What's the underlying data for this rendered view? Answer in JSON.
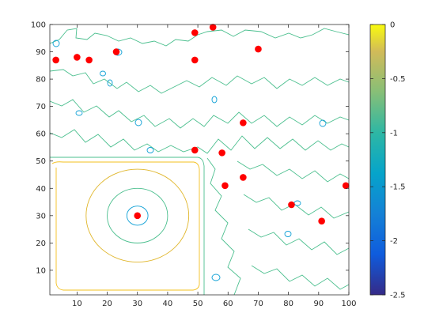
{
  "chart_data": {
    "type": "contour",
    "xlim": [
      1,
      100
    ],
    "ylim": [
      1,
      100
    ],
    "xticks": [
      10,
      20,
      30,
      40,
      50,
      60,
      70,
      80,
      90,
      100
    ],
    "yticks": [
      10,
      20,
      30,
      40,
      50,
      60,
      70,
      80,
      90,
      100
    ],
    "grid": false,
    "colorbar": {
      "location": "right",
      "colormap": "parula",
      "limits": [
        -2.5,
        0
      ],
      "ticks": [
        0,
        -0.5,
        -1,
        -1.5,
        -2,
        -2.5
      ],
      "tick_labels": [
        "0",
        "-0.5",
        "-1",
        "-1.5",
        "-2",
        "-2.5"
      ]
    },
    "contour_levels": [
      {
        "level": -0.2,
        "color": "#f3c01e"
      },
      {
        "level": -0.8,
        "color": "#e0b62b"
      },
      {
        "level": -1.2,
        "color": "#4bbf8e"
      },
      {
        "level": -1.6,
        "color": "#11a1d6"
      }
    ],
    "central_well": {
      "x": 30,
      "y": 30,
      "radii": [
        3.5,
        10,
        17
      ]
    },
    "points": {
      "color": "#ff0000",
      "marker": "filled-circle",
      "x": [
        3,
        10,
        14,
        23,
        49,
        49,
        55,
        70,
        65,
        58,
        49,
        65,
        59,
        81,
        91,
        99,
        30
      ],
      "y": [
        87,
        88,
        87,
        90,
        97,
        87,
        99,
        91,
        64,
        53,
        54,
        44,
        41,
        34,
        28,
        41,
        30
      ]
    }
  }
}
